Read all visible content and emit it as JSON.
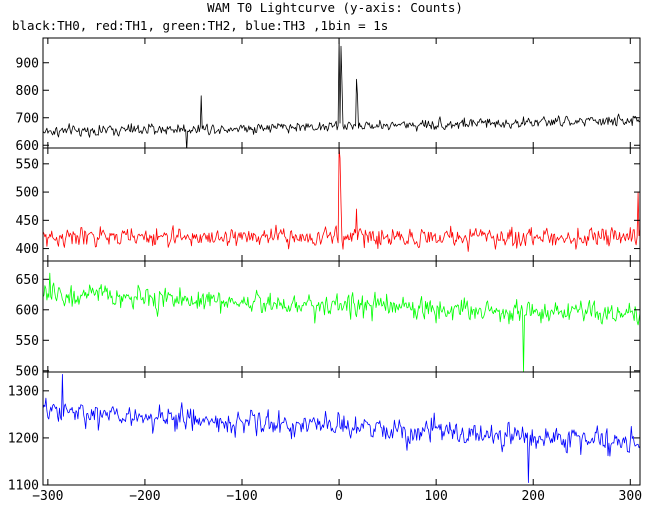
{
  "chart_data": {
    "type": "line",
    "title": "WAM T0 Lightcurve (y-axis: Counts)",
    "subtitle": "black:TH0, red:TH1, green:TH2, blue:TH3 ,1bin = 1s",
    "xlabel": "",
    "ylabel": "",
    "xlim": [
      -305,
      310
    ],
    "x_ticks": [
      -300,
      -200,
      -100,
      0,
      100,
      200,
      300
    ],
    "x_tick_labels": [
      "−300",
      "−200",
      "−100",
      "0",
      "100",
      "200",
      "300"
    ],
    "grid": false,
    "panels": [
      {
        "series_name": "TH0",
        "color": "#000000",
        "ylim": [
          590,
          990
        ],
        "y_ticks": [
          600,
          700,
          800,
          900
        ],
        "baseline": 650,
        "baseline_end": 690,
        "noise": 22,
        "spikes": [
          {
            "x": 0,
            "value": 990
          },
          {
            "x": 2,
            "value": 960
          },
          {
            "x": 3,
            "value": 820
          },
          {
            "x": 18,
            "value": 840
          },
          {
            "x": 19,
            "value": 780
          },
          {
            "x": -142,
            "value": 780
          },
          {
            "x": -157,
            "value": 580
          }
        ]
      },
      {
        "series_name": "TH1",
        "color": "#ff0000",
        "ylim": [
          378,
          578
        ],
        "y_ticks": [
          400,
          450,
          500,
          550
        ],
        "baseline": 420,
        "baseline_end": 420,
        "noise": 18,
        "spikes": [
          {
            "x": 0,
            "value": 578
          },
          {
            "x": 1,
            "value": 560
          },
          {
            "x": 2,
            "value": 480
          },
          {
            "x": 18,
            "value": 470
          },
          {
            "x": 308,
            "value": 500
          }
        ]
      },
      {
        "series_name": "TH2",
        "color": "#00ff00",
        "ylim": [
          498,
          680
        ],
        "y_ticks": [
          500,
          550,
          600,
          650
        ],
        "baseline": 625,
        "baseline_end": 590,
        "noise": 20,
        "spikes": [
          {
            "x": 190,
            "value": 498
          },
          {
            "x": -298,
            "value": 660
          }
        ]
      },
      {
        "series_name": "TH3",
        "color": "#0000ff",
        "ylim": [
          1100,
          1340
        ],
        "y_ticks": [
          1100,
          1200,
          1300
        ],
        "baseline": 1255,
        "baseline_end": 1190,
        "noise": 28,
        "spikes": [
          {
            "x": -285,
            "value": 1335
          },
          {
            "x": 195,
            "value": 1105
          }
        ]
      }
    ]
  }
}
